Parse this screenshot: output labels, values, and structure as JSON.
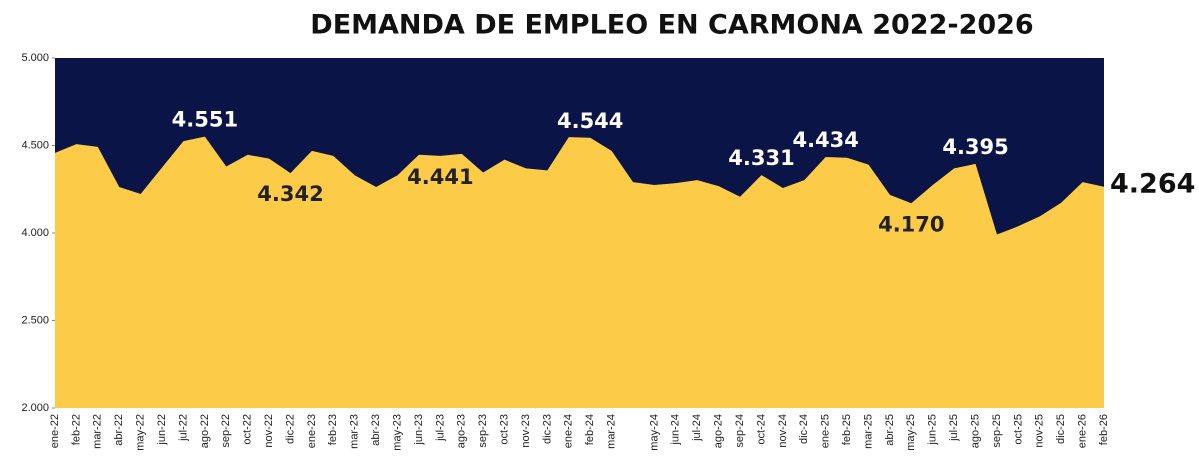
{
  "chart_data": {
    "type": "area",
    "title": "DEMANDA DE EMPLEO EN CARMONA 2022-2026",
    "categories": [
      "ene-22",
      "feb-22",
      "mar-22",
      "abr-22",
      "may-22",
      "jun-22",
      "jul-22",
      "ago-22",
      "sep-22",
      "oct-22",
      "nov-22",
      "dic-22",
      "ene-23",
      "feb-23",
      "mar-23",
      "abr-23",
      "may-23",
      "jun-23",
      "jul-23",
      "ago-23",
      "sep-23",
      "oct-23",
      "nov-23",
      "dic-23",
      "ene-24",
      "feb-24",
      "mar-24",
      null,
      "may-24",
      "jun-24",
      "jul-24",
      "ago-24",
      "sep-24",
      "oct-24",
      "nov-24",
      "dic-24",
      "ene-25",
      "feb-25",
      "mar-25",
      "abr-25",
      "may-25",
      "jun-25",
      "jul-25",
      "ago-25",
      "sep-25",
      "oct-25",
      "nov-25",
      "dic-25",
      "ene-26",
      "feb-26"
    ],
    "values": [
      4458,
      4508,
      4492,
      4263,
      4223,
      4374,
      4525,
      4551,
      4380,
      4447,
      4425,
      4342,
      4469,
      4441,
      4330,
      4263,
      4330,
      4447,
      4441,
      4452,
      4346,
      4419,
      4369,
      4358,
      4548,
      4544,
      4469,
      4291,
      4274,
      4285,
      4302,
      4268,
      4207,
      4331,
      4257,
      4302,
      4434,
      4430,
      4391,
      4218,
      4170,
      4274,
      4369,
      4395,
      3975,
      4039,
      4095,
      4173,
      4291,
      4264
    ],
    "value_labels": [
      null,
      null,
      null,
      null,
      null,
      null,
      null,
      "4.551",
      null,
      null,
      null,
      "4.342",
      null,
      null,
      null,
      null,
      null,
      null,
      "4.441",
      null,
      null,
      null,
      null,
      null,
      null,
      "4.544",
      null,
      null,
      null,
      null,
      null,
      null,
      null,
      "4.331",
      null,
      null,
      "4.434",
      null,
      null,
      null,
      "4.170",
      null,
      null,
      "4.395",
      null,
      null,
      null,
      null,
      null,
      "4.264"
    ],
    "color": "#fccb47",
    "plot_background": "#0b1446",
    "ylim": [
      2000,
      5000
    ],
    "yticks": [
      {
        "value": 5000,
        "label": "5.000"
      },
      {
        "value": 4500,
        "label": "4.500"
      },
      {
        "value": 4000,
        "label": "4.000"
      },
      {
        "value": 2500,
        "label": "2.500"
      },
      {
        "value": 2000,
        "label": "2.000"
      }
    ]
  }
}
